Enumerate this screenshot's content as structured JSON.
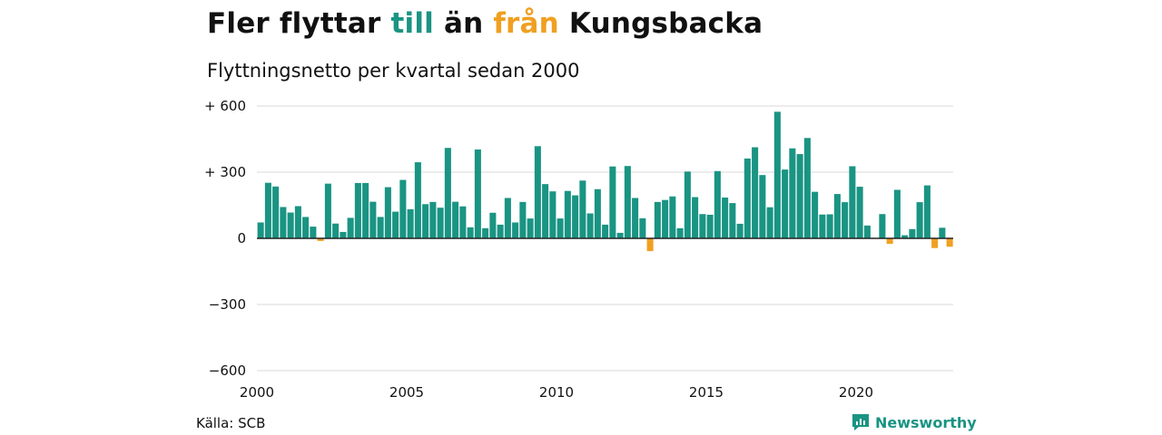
{
  "header": {
    "title_parts": [
      "Fler flyttar ",
      "till",
      " än ",
      "från",
      " Kungsbacka"
    ],
    "subtitle": "Flyttningsnetto per kvartal sedan 2000"
  },
  "footer": {
    "source": "Källa: SCB",
    "brand": "Newsworthy"
  },
  "colors": {
    "positive": "#1a9483",
    "negative": "#f0a021",
    "grid": "#d9d9d9",
    "zero_line": "#222222",
    "brand": "#1a9483"
  },
  "chart_data": {
    "type": "bar",
    "title": "Fler flyttar till än från Kungsbacka",
    "subtitle": "Flyttningsnetto per kvartal sedan 2000",
    "x_start": 2000,
    "periods_per_year": 4,
    "ylim": [
      -600,
      600
    ],
    "y_ticks": [
      {
        "value": 600,
        "label": "+ 600"
      },
      {
        "value": 300,
        "label": "+ 300"
      },
      {
        "value": 0,
        "label": "0"
      },
      {
        "value": -300,
        "label": "−300"
      },
      {
        "value": -600,
        "label": "−600"
      }
    ],
    "x_ticks": [
      {
        "value": 2000,
        "label": "2000"
      },
      {
        "value": 2005,
        "label": "2005"
      },
      {
        "value": 2010,
        "label": "2010"
      },
      {
        "value": 2015,
        "label": "2015"
      },
      {
        "value": 2020,
        "label": "2020"
      }
    ],
    "grid": true,
    "values": [
      72,
      252,
      235,
      142,
      117,
      146,
      97,
      53,
      -12,
      248,
      67,
      29,
      93,
      251,
      251,
      166,
      97,
      232,
      121,
      265,
      132,
      345,
      155,
      165,
      139,
      410,
      166,
      145,
      50,
      403,
      46,
      116,
      62,
      183,
      72,
      165,
      90,
      418,
      246,
      213,
      90,
      215,
      195,
      262,
      113,
      223,
      62,
      326,
      25,
      328,
      183,
      91,
      -58,
      165,
      174,
      190,
      46,
      303,
      187,
      110,
      107,
      305,
      185,
      160,
      66,
      362,
      413,
      287,
      141,
      574,
      312,
      408,
      382,
      455,
      211,
      108,
      109,
      201,
      164,
      327,
      234,
      58,
      0,
      110,
      -25,
      220,
      14,
      42,
      164,
      240,
      -44,
      48,
      -38
    ]
  }
}
